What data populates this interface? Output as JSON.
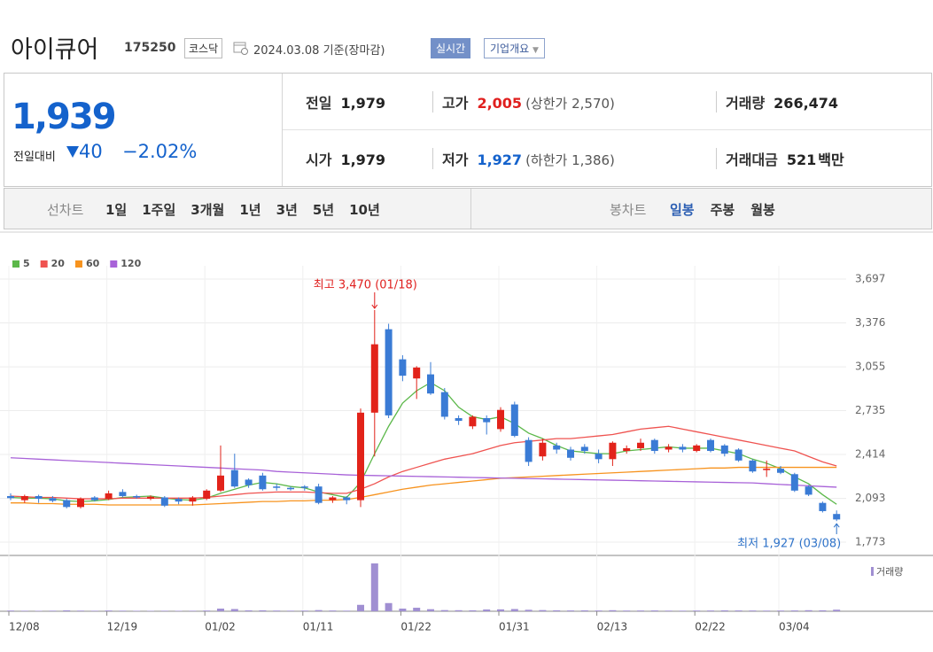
{
  "header": {
    "title": "아이큐어",
    "code": "175250",
    "market": "코스닥",
    "date": "2024.03.08 기준(장마감)",
    "realtime_button": "실시간",
    "company_button": "기업개요"
  },
  "quote": {
    "price": "1,939",
    "change_label": "전일대비",
    "change": "40",
    "change_rate": "−2.02%",
    "items": [
      {
        "label": "전일",
        "value": "1,979"
      },
      {
        "label": "고가",
        "value": "2,005",
        "note": "(상한가 2,570)"
      },
      {
        "label": "거래량",
        "value": "266,474"
      },
      {
        "label": "시가",
        "value": "1,979"
      },
      {
        "label": "저가",
        "value": "1,927",
        "note": "(하한가 1,386)"
      },
      {
        "label": "거래대금",
        "value": "521",
        "unit": "백만"
      }
    ]
  },
  "tabs": {
    "line_label": "선차트",
    "line": [
      "1일",
      "1주일",
      "3개월",
      "1년",
      "3년",
      "5년",
      "10년"
    ],
    "candle_label": "봉차트",
    "candle": [
      "일봉",
      "주봉",
      "월봉"
    ]
  },
  "chart_data": {
    "type": "candlestick",
    "categories": [
      "12/08",
      null,
      null,
      null,
      null,
      null,
      null,
      "12/19",
      null,
      null,
      null,
      null,
      null,
      null,
      "01/02",
      null,
      null,
      null,
      null,
      null,
      null,
      "01/11",
      null,
      null,
      null,
      null,
      null,
      null,
      "01/22",
      null,
      null,
      null,
      null,
      null,
      null,
      "01/31",
      null,
      null,
      null,
      null,
      null,
      null,
      "02/13",
      null,
      null,
      null,
      null,
      null,
      null,
      "02/22",
      null,
      null,
      null,
      null,
      null,
      "03/04",
      null,
      null,
      null,
      null
    ],
    "open": [
      2110,
      2080,
      2110,
      2095,
      2080,
      2030,
      2100,
      2090,
      2140,
      2110,
      2090,
      2100,
      2090,
      2070,
      2090,
      2150,
      2300,
      2230,
      2260,
      2180,
      2170,
      2180,
      2180,
      2080,
      2100,
      2080,
      2720,
      3330,
      3110,
      2970,
      3000,
      2870,
      2680,
      2620,
      2680,
      2600,
      2780,
      2520,
      2400,
      2480,
      2450,
      2470,
      2420,
      2380,
      2440,
      2460,
      2520,
      2450,
      2470,
      2440,
      2520,
      2480,
      2450,
      2370,
      2300,
      2310,
      2270,
      2180,
      2060,
      1979
    ],
    "high": [
      2130,
      2120,
      2120,
      2110,
      2090,
      2100,
      2110,
      2150,
      2160,
      2120,
      2115,
      2110,
      2100,
      2110,
      2160,
      2480,
      2420,
      2240,
      2280,
      2200,
      2180,
      2190,
      2200,
      2110,
      2110,
      2750,
      3470,
      3370,
      3140,
      3060,
      3090,
      2900,
      2700,
      2700,
      2700,
      2760,
      2800,
      2540,
      2530,
      2500,
      2470,
      2490,
      2450,
      2510,
      2480,
      2530,
      2530,
      2490,
      2490,
      2490,
      2530,
      2490,
      2460,
      2380,
      2370,
      2330,
      2280,
      2190,
      2070,
      2005
    ],
    "low": [
      2080,
      2060,
      2060,
      2065,
      2020,
      2020,
      2070,
      2080,
      2100,
      2090,
      2080,
      2030,
      2050,
      2040,
      2080,
      2140,
      2170,
      2170,
      2150,
      2150,
      2150,
      2150,
      2050,
      2060,
      2050,
      2030,
      2400,
      2680,
      2950,
      2820,
      2850,
      2670,
      2630,
      2600,
      2560,
      2580,
      2540,
      2330,
      2370,
      2420,
      2370,
      2420,
      2350,
      2330,
      2420,
      2440,
      2420,
      2430,
      2430,
      2430,
      2430,
      2400,
      2360,
      2280,
      2250,
      2270,
      2140,
      2110,
      1990,
      1927
    ],
    "close": [
      2095,
      2110,
      2090,
      2075,
      2030,
      2090,
      2080,
      2130,
      2110,
      2100,
      2105,
      2040,
      2070,
      2100,
      2150,
      2260,
      2180,
      2190,
      2160,
      2170,
      2160,
      2170,
      2060,
      2100,
      2080,
      2720,
      3220,
      2700,
      2990,
      3050,
      2860,
      2690,
      2660,
      2690,
      2650,
      2740,
      2550,
      2360,
      2500,
      2450,
      2390,
      2440,
      2380,
      2500,
      2460,
      2500,
      2440,
      2470,
      2450,
      2480,
      2440,
      2420,
      2370,
      2290,
      2310,
      2280,
      2150,
      2120,
      2000,
      1939
    ],
    "volume": [
      120000,
      90000,
      80000,
      100000,
      150000,
      110000,
      90000,
      130000,
      100000,
      80000,
      70000,
      90000,
      80000,
      90000,
      120000,
      450000,
      380000,
      150000,
      160000,
      120000,
      100000,
      110000,
      200000,
      130000,
      100000,
      1100000,
      8200000,
      1400000,
      450000,
      600000,
      350000,
      200000,
      180000,
      160000,
      300000,
      320000,
      380000,
      250000,
      200000,
      160000,
      140000,
      150000,
      130000,
      180000,
      120000,
      130000,
      140000,
      110000,
      100000,
      120000,
      130000,
      150000,
      140000,
      130000,
      110000,
      120000,
      140000,
      180000,
      160000,
      266474
    ],
    "volume_label": "거래량",
    "up_color": "#e2231a",
    "down_color": "#3a7bd5",
    "volume_color": "#a08fd2",
    "ylim": [
      1773,
      3697
    ],
    "yticks": [
      {
        "value": 3697,
        "label": "3,697"
      },
      {
        "value": 3376,
        "label": "3,376"
      },
      {
        "value": 3055,
        "label": "3,055"
      },
      {
        "value": 2735,
        "label": "2,735"
      },
      {
        "value": 2414,
        "label": "2,414"
      },
      {
        "value": 2093,
        "label": "2,093"
      },
      {
        "value": 1773,
        "label": "1,773"
      }
    ],
    "grid": true,
    "series": [
      {
        "name": "5",
        "color": "#5cb84a",
        "values": [
          2100,
          2095,
          2095,
          2090,
          2075,
          2070,
          2075,
          2085,
          2100,
          2105,
          2110,
          2095,
          2085,
          2080,
          2095,
          2130,
          2160,
          2190,
          2210,
          2200,
          2180,
          2170,
          2140,
          2120,
          2100,
          2210,
          2420,
          2620,
          2790,
          2880,
          2940,
          2880,
          2760,
          2690,
          2670,
          2690,
          2640,
          2570,
          2530,
          2480,
          2440,
          2430,
          2420,
          2420,
          2440,
          2450,
          2460,
          2470,
          2460,
          2460,
          2460,
          2440,
          2420,
          2380,
          2350,
          2310,
          2250,
          2200,
          2120,
          2050
        ]
      },
      {
        "name": "20",
        "color": "#ef5350",
        "values": [
          2110,
          2105,
          2100,
          2100,
          2095,
          2090,
          2090,
          2090,
          2095,
          2095,
          2095,
          2095,
          2095,
          2095,
          2100,
          2110,
          2120,
          2130,
          2135,
          2140,
          2140,
          2140,
          2135,
          2130,
          2130,
          2160,
          2200,
          2250,
          2290,
          2320,
          2350,
          2380,
          2400,
          2420,
          2450,
          2480,
          2500,
          2510,
          2520,
          2530,
          2530,
          2540,
          2550,
          2560,
          2580,
          2600,
          2610,
          2620,
          2600,
          2580,
          2560,
          2540,
          2520,
          2500,
          2480,
          2460,
          2440,
          2400,
          2360,
          2330
        ]
      },
      {
        "name": "60",
        "color": "#f7931e",
        "values": [
          2060,
          2060,
          2055,
          2055,
          2050,
          2050,
          2050,
          2045,
          2045,
          2045,
          2045,
          2045,
          2045,
          2045,
          2050,
          2055,
          2060,
          2065,
          2070,
          2070,
          2075,
          2075,
          2080,
          2080,
          2085,
          2100,
          2120,
          2140,
          2160,
          2175,
          2190,
          2200,
          2210,
          2220,
          2230,
          2240,
          2245,
          2250,
          2255,
          2260,
          2265,
          2270,
          2275,
          2280,
          2285,
          2290,
          2295,
          2300,
          2305,
          2310,
          2315,
          2315,
          2320,
          2320,
          2320,
          2320,
          2320,
          2320,
          2320,
          2320
        ]
      },
      {
        "name": "120",
        "color": "#a862d8",
        "values": [
          2390,
          2385,
          2380,
          2375,
          2370,
          2365,
          2360,
          2355,
          2350,
          2345,
          2340,
          2335,
          2330,
          2325,
          2320,
          2315,
          2310,
          2305,
          2300,
          2290,
          2285,
          2280,
          2275,
          2270,
          2265,
          2262,
          2260,
          2258,
          2256,
          2254,
          2252,
          2250,
          2248,
          2246,
          2244,
          2242,
          2240,
          2238,
          2236,
          2234,
          2232,
          2230,
          2228,
          2226,
          2224,
          2222,
          2220,
          2218,
          2216,
          2214,
          2212,
          2210,
          2208,
          2206,
          2200,
          2195,
          2190,
          2185,
          2180,
          2175
        ]
      }
    ],
    "annotations": {
      "max": "최고 3,470 (01/18)",
      "min": "최저 1,927 (03/08)"
    }
  }
}
